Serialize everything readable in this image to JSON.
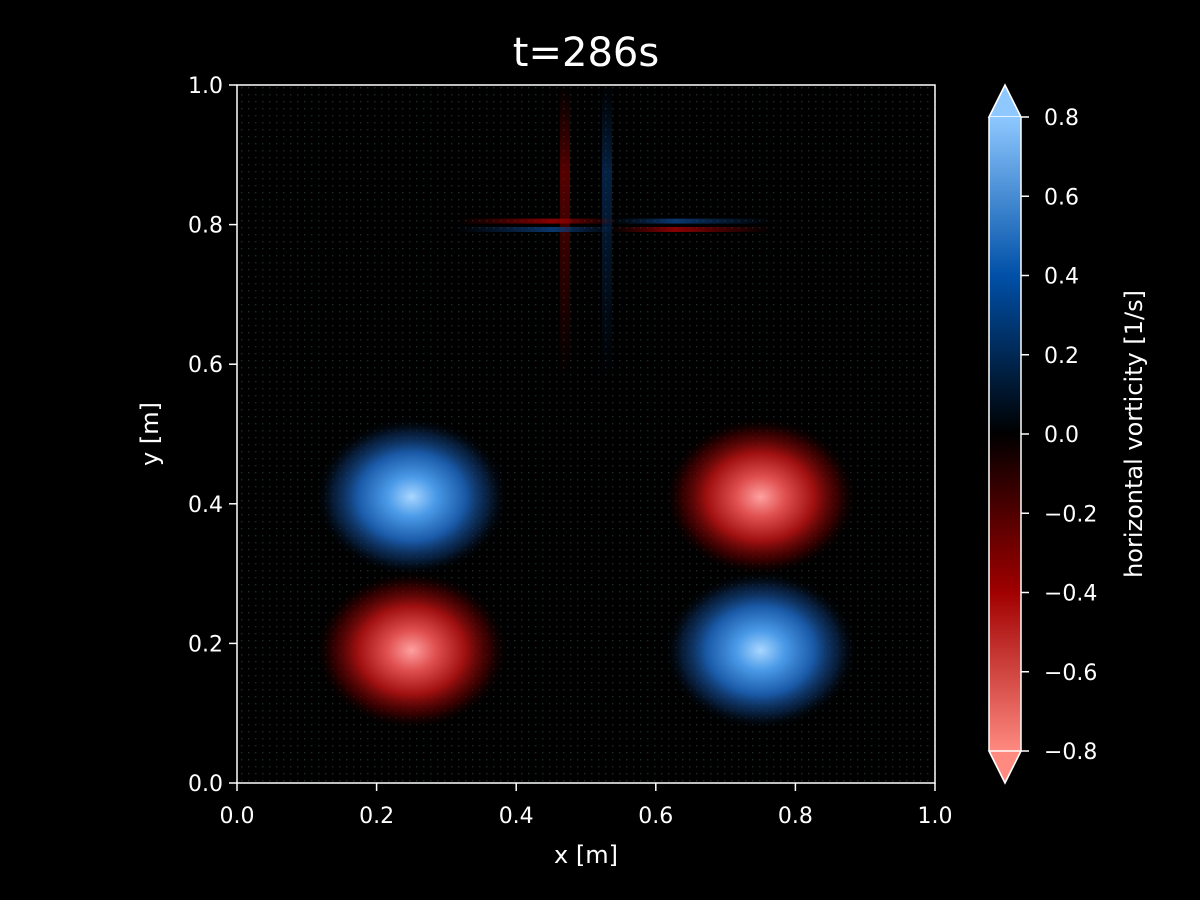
{
  "chart_data": {
    "type": "heatmap",
    "title": "t=286s",
    "xlabel": "x [m]",
    "ylabel": "y [m]",
    "xlim": [
      0.0,
      1.0
    ],
    "ylim": [
      0.0,
      1.0
    ],
    "xticks": [
      "0.0",
      "0.2",
      "0.4",
      "0.6",
      "0.8",
      "1.0"
    ],
    "yticks": [
      "0.0",
      "0.2",
      "0.4",
      "0.6",
      "0.8",
      "1.0"
    ],
    "grid": false,
    "overlay": "velocity quiver arrows",
    "colorbar": {
      "label": "horizontal vorticity [1/s]",
      "range": [
        -0.8,
        0.8
      ],
      "extend": "both",
      "ticks": [
        "0.8",
        "0.6",
        "0.4",
        "0.2",
        "0.0",
        "−0.2",
        "−0.4",
        "−0.6",
        "−0.8"
      ],
      "colors": {
        "neg_extreme": "#ff8a80",
        "neg_mid": "#a00000",
        "zero": "#000000",
        "pos_mid": "#0050a8",
        "pos_extreme": "#8ec8ff"
      }
    },
    "vortices": [
      {
        "x": 0.25,
        "y": 0.41,
        "peak": 0.8,
        "sign": "positive"
      },
      {
        "x": 0.75,
        "y": 0.41,
        "peak": -0.8,
        "sign": "negative"
      },
      {
        "x": 0.25,
        "y": 0.19,
        "peak": -0.8,
        "sign": "negative"
      },
      {
        "x": 0.75,
        "y": 0.19,
        "peak": 0.8,
        "sign": "positive"
      }
    ],
    "shear_features": [
      {
        "x": 0.47,
        "y": 0.8,
        "sign": "negative",
        "orientation": "vertical"
      },
      {
        "x": 0.53,
        "y": 0.8,
        "sign": "positive",
        "orientation": "vertical"
      },
      {
        "x": 0.43,
        "y": 0.805,
        "sign": "negative",
        "orientation": "horizontal"
      },
      {
        "x": 0.43,
        "y": 0.793,
        "sign": "positive",
        "orientation": "horizontal"
      },
      {
        "x": 0.65,
        "y": 0.805,
        "sign": "positive",
        "orientation": "horizontal"
      },
      {
        "x": 0.65,
        "y": 0.793,
        "sign": "negative",
        "orientation": "horizontal"
      }
    ]
  }
}
